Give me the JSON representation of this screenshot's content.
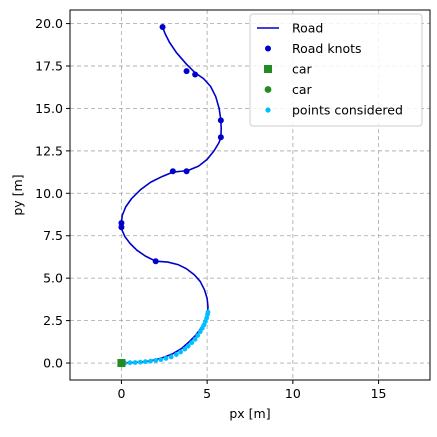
{
  "chart_data": {
    "type": "line",
    "xlabel": "px [m]",
    "ylabel": "py [m]",
    "xlim": [
      -3.0,
      18.0
    ],
    "ylim": [
      -1.0,
      20.8
    ],
    "xticks": [
      0,
      5,
      10,
      15
    ],
    "yticks": [
      0.0,
      2.5,
      5.0,
      7.5,
      10.0,
      12.5,
      15.0,
      17.5,
      20.0
    ],
    "xtick_labels": [
      "0",
      "5",
      "10",
      "15"
    ],
    "ytick_labels": [
      "0.0",
      "2.5",
      "5.0",
      "7.5",
      "10.0",
      "12.5",
      "15.0",
      "17.5",
      "20.0"
    ],
    "grid": true,
    "legend_position": "upper right",
    "colors": {
      "road": "#0000cc",
      "road_knots": "#0000cc",
      "car": "#228b22",
      "points_considered": "#00bfff",
      "grid": "#b0b0b0"
    },
    "series": [
      {
        "name": "Road",
        "kind": "line",
        "x": [
          0.0,
          0.5,
          1.0,
          1.5,
          2.0,
          2.5,
          3.0,
          3.5,
          3.9,
          4.3,
          4.6,
          4.85,
          5.0,
          5.05,
          5.0,
          4.85,
          4.6,
          4.25,
          3.8,
          3.3,
          2.7,
          2.0,
          1.4,
          0.9,
          0.5,
          0.2,
          0.05,
          0.0,
          0.0,
          0.05,
          0.25,
          0.6,
          1.1,
          1.7,
          2.4,
          3.0,
          3.5,
          3.9,
          4.5,
          5.0,
          5.4,
          5.7,
          5.8,
          5.82,
          5.8,
          5.7,
          5.5,
          5.2,
          4.8,
          4.3,
          3.8,
          3.2,
          2.8,
          2.55,
          2.4
        ],
        "y": [
          0.0,
          0.02,
          0.05,
          0.1,
          0.2,
          0.35,
          0.55,
          0.85,
          1.2,
          1.6,
          2.0,
          2.4,
          2.8,
          3.3,
          3.8,
          4.3,
          4.8,
          5.2,
          5.55,
          5.8,
          5.95,
          6.0,
          6.3,
          6.65,
          7.05,
          7.45,
          7.8,
          8.0,
          8.3,
          8.7,
          9.2,
          9.7,
          10.2,
          10.65,
          11.0,
          11.25,
          11.3,
          11.35,
          11.6,
          12.0,
          12.5,
          13.0,
          13.3,
          13.8,
          14.3,
          15.0,
          15.7,
          16.3,
          16.75,
          17.1,
          17.6,
          18.3,
          18.9,
          19.4,
          19.8
        ]
      },
      {
        "name": "Road knots",
        "kind": "scatter",
        "x": [
          0.0,
          2.0,
          0.0,
          0.0,
          3.0,
          3.8,
          5.8,
          5.8,
          4.3,
          3.8,
          2.4
        ],
        "y": [
          0.0,
          6.0,
          8.0,
          8.25,
          11.3,
          11.3,
          13.3,
          14.3,
          17.0,
          17.2,
          19.8
        ]
      },
      {
        "name": "car",
        "kind": "scatter-square",
        "x": [
          0.0
        ],
        "y": [
          0.0
        ]
      },
      {
        "name": "car",
        "kind": "scatter",
        "x": [
          0.0
        ],
        "y": [
          0.0
        ]
      },
      {
        "name": "points considered",
        "kind": "scatter-small",
        "x": [
          0.2,
          0.5,
          0.8,
          1.1,
          1.4,
          1.7,
          2.0,
          2.3,
          2.6,
          2.9,
          3.2,
          3.45,
          3.7,
          3.9,
          4.1,
          4.3,
          4.45,
          4.6,
          4.72,
          4.82,
          4.9,
          4.97,
          5.02,
          5.05
        ],
        "y": [
          0.0,
          0.02,
          0.03,
          0.05,
          0.08,
          0.11,
          0.15,
          0.2,
          0.27,
          0.36,
          0.5,
          0.65,
          0.82,
          1.0,
          1.2,
          1.4,
          1.62,
          1.85,
          2.05,
          2.25,
          2.45,
          2.65,
          2.85,
          3.0
        ]
      }
    ]
  }
}
